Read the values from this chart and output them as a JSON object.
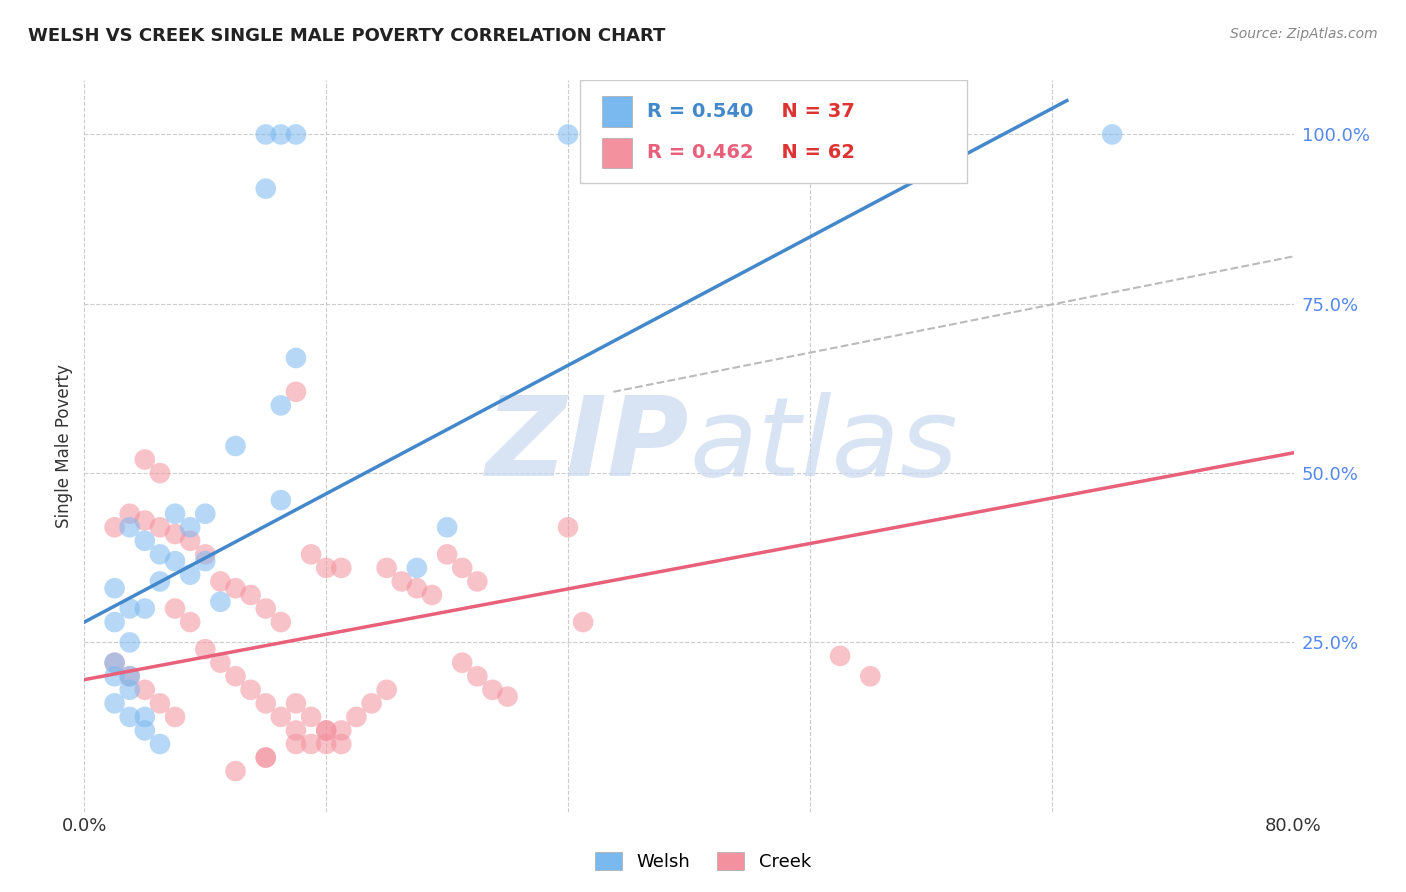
{
  "title": "WELSH VS CREEK SINGLE MALE POVERTY CORRELATION CHART",
  "source": "Source: ZipAtlas.com",
  "ylabel": "Single Male Poverty",
  "ytick_labels": [
    "100.0%",
    "75.0%",
    "50.0%",
    "25.0%"
  ],
  "ytick_values": [
    1.0,
    0.75,
    0.5,
    0.25
  ],
  "xlim": [
    0.0,
    0.8
  ],
  "ylim": [
    0.0,
    1.08
  ],
  "welsh_R": 0.54,
  "welsh_N": 37,
  "creek_R": 0.462,
  "creek_N": 62,
  "welsh_color": "#7ab8f0",
  "creek_color": "#f4919e",
  "welsh_line_color": "#4488cc",
  "creek_line_color": "#e8607a",
  "dashed_line_color": "#bbbbbb",
  "background_color": "#ffffff",
  "watermark_color": "#c8d8f0",
  "legend_R_blue": "#4488cc",
  "legend_R_pink": "#e8607a",
  "legend_N_blue": "#e05050",
  "legend_N_pink": "#e05050",
  "welsh_line_x": [
    0.0,
    0.65
  ],
  "welsh_line_y": [
    0.28,
    1.05
  ],
  "creek_line_x": [
    0.0,
    0.8
  ],
  "creek_line_y": [
    0.195,
    0.53
  ],
  "dash_line_x": [
    0.35,
    0.8
  ],
  "dash_line_y": [
    0.62,
    0.82
  ],
  "x_grid_ticks": [
    0.0,
    0.16,
    0.32,
    0.48,
    0.64,
    0.8
  ],
  "x_axis_labels_show": [
    "0.0%",
    "",
    "",
    "",
    "",
    "80.0%"
  ],
  "welsh_x": [
    0.12,
    0.13,
    0.14,
    0.12,
    0.32,
    0.68,
    0.14,
    0.13,
    0.1,
    0.05,
    0.06,
    0.08,
    0.07,
    0.06,
    0.08,
    0.07,
    0.09,
    0.03,
    0.04,
    0.05,
    0.02,
    0.03,
    0.24,
    0.22,
    0.02,
    0.03,
    0.04,
    0.02,
    0.03,
    0.04,
    0.05,
    0.02,
    0.03,
    0.02,
    0.03,
    0.13,
    0.04
  ],
  "welsh_y": [
    1.0,
    1.0,
    1.0,
    0.92,
    1.0,
    1.0,
    0.67,
    0.6,
    0.54,
    0.34,
    0.37,
    0.37,
    0.42,
    0.44,
    0.44,
    0.35,
    0.31,
    0.42,
    0.4,
    0.38,
    0.33,
    0.3,
    0.42,
    0.36,
    0.28,
    0.25,
    0.3,
    0.16,
    0.14,
    0.12,
    0.1,
    0.2,
    0.18,
    0.22,
    0.2,
    0.46,
    0.14
  ],
  "creek_x": [
    0.02,
    0.03,
    0.04,
    0.05,
    0.06,
    0.02,
    0.03,
    0.04,
    0.05,
    0.06,
    0.07,
    0.08,
    0.09,
    0.1,
    0.11,
    0.12,
    0.13,
    0.14,
    0.15,
    0.16,
    0.17,
    0.2,
    0.21,
    0.22,
    0.23,
    0.24,
    0.25,
    0.26,
    0.32,
    0.33,
    0.5,
    0.52,
    0.04,
    0.05,
    0.06,
    0.07,
    0.08,
    0.09,
    0.1,
    0.11,
    0.12,
    0.13,
    0.14,
    0.15,
    0.16,
    0.17,
    0.18,
    0.19,
    0.2,
    0.25,
    0.26,
    0.27,
    0.28,
    0.14,
    0.15,
    0.16,
    0.17,
    0.12,
    0.1,
    0.12,
    0.14,
    0.16
  ],
  "creek_y": [
    0.22,
    0.2,
    0.18,
    0.16,
    0.14,
    0.42,
    0.44,
    0.43,
    0.42,
    0.41,
    0.4,
    0.38,
    0.34,
    0.33,
    0.32,
    0.3,
    0.28,
    0.62,
    0.38,
    0.36,
    0.36,
    0.36,
    0.34,
    0.33,
    0.32,
    0.38,
    0.36,
    0.34,
    0.42,
    0.28,
    0.23,
    0.2,
    0.52,
    0.5,
    0.3,
    0.28,
    0.24,
    0.22,
    0.2,
    0.18,
    0.16,
    0.14,
    0.12,
    0.1,
    0.1,
    0.12,
    0.14,
    0.16,
    0.18,
    0.22,
    0.2,
    0.18,
    0.17,
    0.16,
    0.14,
    0.12,
    0.1,
    0.08,
    0.06,
    0.08,
    0.1,
    0.12
  ]
}
